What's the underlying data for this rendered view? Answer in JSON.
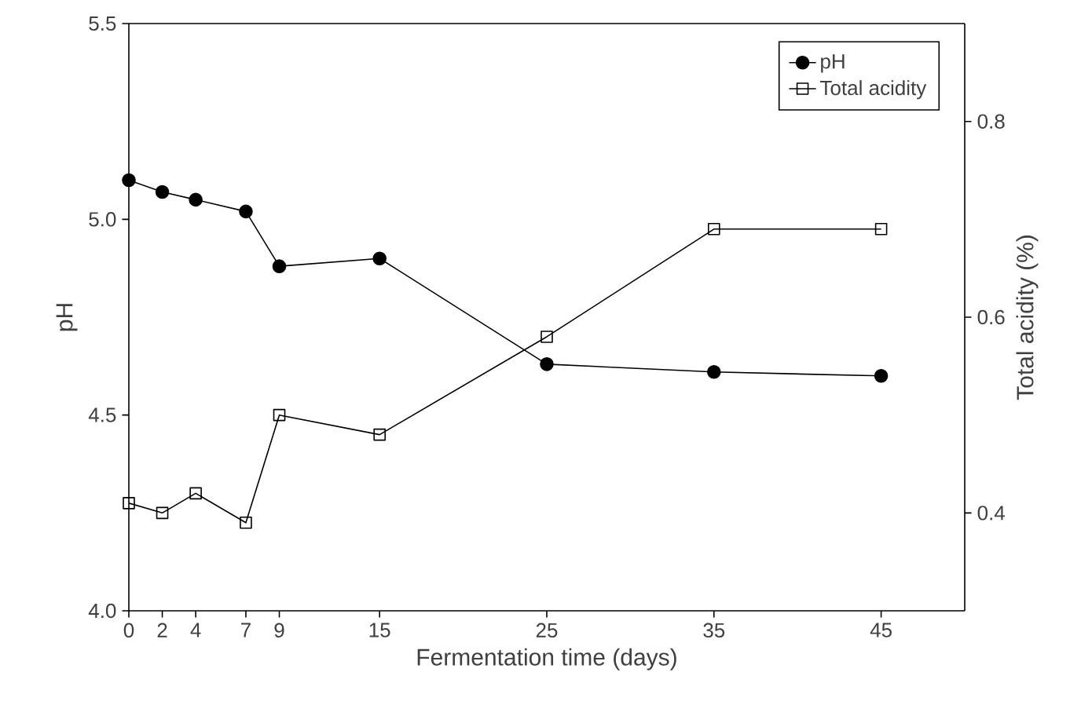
{
  "chart_data": {
    "type": "line",
    "xlabel": "Fermentation time (days)",
    "ylabel": "pH",
    "y2label": "Total acidity (%)",
    "x": [
      0,
      2,
      4,
      7,
      9,
      15,
      25,
      35,
      45
    ],
    "series": [
      {
        "name": "pH",
        "color": "#000000",
        "marker": "circle",
        "values": [
          5.1,
          5.07,
          5.05,
          5.02,
          4.88,
          4.9,
          4.63,
          4.61,
          4.6
        ]
      },
      {
        "name": "Total acidity",
        "color": "#000000",
        "marker": "square",
        "axis": "y2",
        "values": [
          0.41,
          0.4,
          0.42,
          0.39,
          0.5,
          0.48,
          0.58,
          0.69,
          0.69
        ]
      }
    ],
    "xlim": [
      0,
      50
    ],
    "xticks": [
      0,
      2,
      4,
      7,
      9,
      15,
      25,
      35,
      45
    ],
    "ylim": [
      4.0,
      5.5
    ],
    "yticks": [
      {
        "value": 4.0,
        "label": "4.0"
      },
      {
        "value": 4.5,
        "label": "4.5"
      },
      {
        "value": 5.0,
        "label": "5.0"
      },
      {
        "value": 5.5,
        "label": "5.5"
      }
    ],
    "y2lim": [
      0.3,
      0.9
    ],
    "y2ticks": [
      0.4,
      0.6,
      0.8
    ],
    "legend": "top right",
    "grid": false,
    "line_style": "solid"
  }
}
